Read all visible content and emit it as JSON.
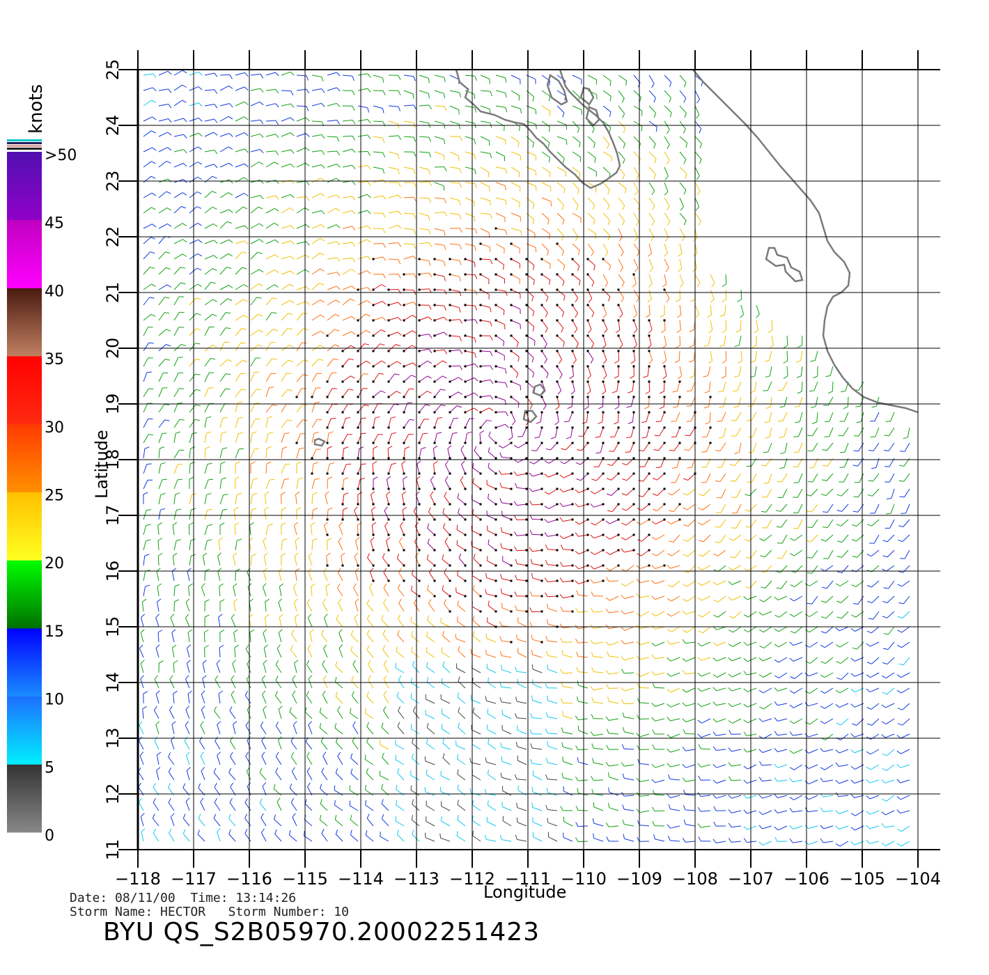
{
  "map": {
    "x_axis_label": "Longitude",
    "y_axis_label": "Latitude",
    "lon_ticks": [
      "−118",
      "−117",
      "−116",
      "−115",
      "−114",
      "−113",
      "−112",
      "−111",
      "−110",
      "−109",
      "−108",
      "−107",
      "−106",
      "−105",
      "−104"
    ],
    "lat_ticks": [
      "11",
      "12",
      "13",
      "14",
      "15",
      "16",
      "17",
      "18",
      "19",
      "20",
      "21",
      "22",
      "23",
      "24",
      "25"
    ],
    "extent": {
      "lon_min": -118,
      "lon_max": -103.6,
      "lat_min": 11,
      "lat_max": 25
    },
    "storm_center": {
      "lon": -111.5,
      "lat": 18.5
    },
    "colors": {
      "grid": "#000000",
      "coast": "#7a7a7a"
    }
  },
  "colorbar": {
    "unit_label": "knots",
    "tick_labels": [
      ">50",
      "45",
      "40",
      "35",
      "30",
      "25",
      "20",
      "15",
      "10",
      "5",
      "0"
    ],
    "bands": [
      {
        "from": 0,
        "to": 5,
        "top": "#333333",
        "bottom": "#888888"
      },
      {
        "from": 5,
        "to": 10,
        "top": "#1e6fff",
        "bottom": "#00f0ff"
      },
      {
        "from": 10,
        "to": 15,
        "top": "#0000ff",
        "bottom": "#1a8cff"
      },
      {
        "from": 15,
        "to": 20,
        "top": "#00ff00",
        "bottom": "#007000"
      },
      {
        "from": 20,
        "to": 25,
        "top": "#ffc000",
        "bottom": "#ffff20"
      },
      {
        "from": 25,
        "to": 30,
        "top": "#ff3a00",
        "bottom": "#ff9000"
      },
      {
        "from": 30,
        "to": 35,
        "top": "#ff0000",
        "bottom": "#ff2a10"
      },
      {
        "from": 35,
        "to": 40,
        "top": "#4a1a10",
        "bottom": "#c08060"
      },
      {
        "from": 40,
        "to": 45,
        "top": "#c000c0",
        "bottom": "#ff00ff"
      },
      {
        "from": 45,
        "to": 50,
        "top": "#5010b0",
        "bottom": "#9000c8"
      }
    ]
  },
  "footer": {
    "line1": "Date: 08/11/00  Time: 13:14:26",
    "line2": "Storm Name: HECTOR   Storm Number: 10",
    "product_id": "BYU QS_S2B05970.20002251423"
  }
}
